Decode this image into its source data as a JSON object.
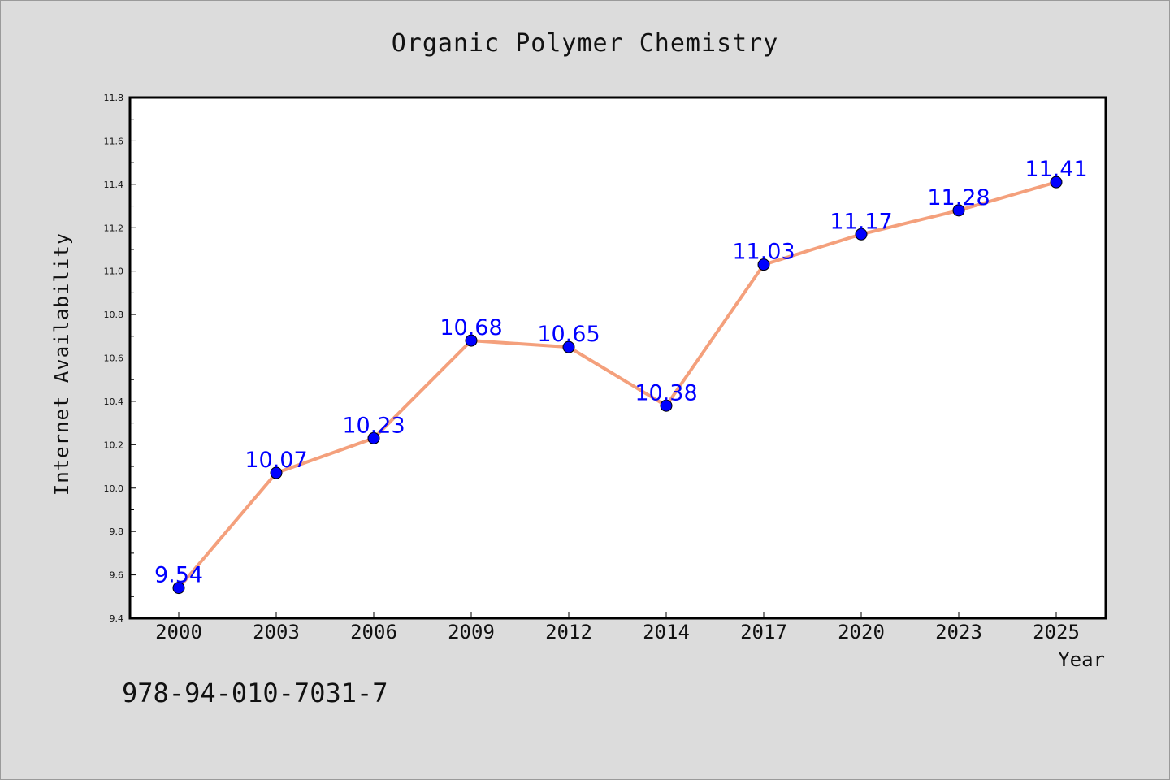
{
  "chart_data": {
    "type": "line",
    "title": "Organic Polymer Chemistry",
    "xlabel": "Year",
    "ylabel": "Internet Availability",
    "categories": [
      "2000",
      "2003",
      "2006",
      "2009",
      "2012",
      "2014",
      "2017",
      "2020",
      "2023",
      "2025"
    ],
    "series": [
      {
        "values": [
          9.54,
          10.07,
          10.23,
          10.68,
          10.65,
          10.38,
          11.03,
          11.17,
          11.28,
          11.41
        ],
        "labels": [
          "9.54",
          "10.07",
          "10.23",
          "10.68",
          "10.65",
          "10.38",
          "11.03",
          "11.17",
          "11.28",
          "11.41"
        ],
        "line_color": "#f4a07c",
        "marker_color": "#0000ff",
        "label_color": "#0000ff"
      }
    ],
    "ylim": [
      9.4,
      11.8
    ],
    "yticks": [
      "9.4",
      "9.6",
      "9.8",
      "10.0",
      "10.2",
      "10.4",
      "10.6",
      "10.8",
      "11.0",
      "11.2",
      "11.4",
      "11.6",
      "11.8"
    ],
    "grid": false,
    "legend": "none"
  },
  "footer": {
    "code": "978-94-010-7031-7"
  }
}
